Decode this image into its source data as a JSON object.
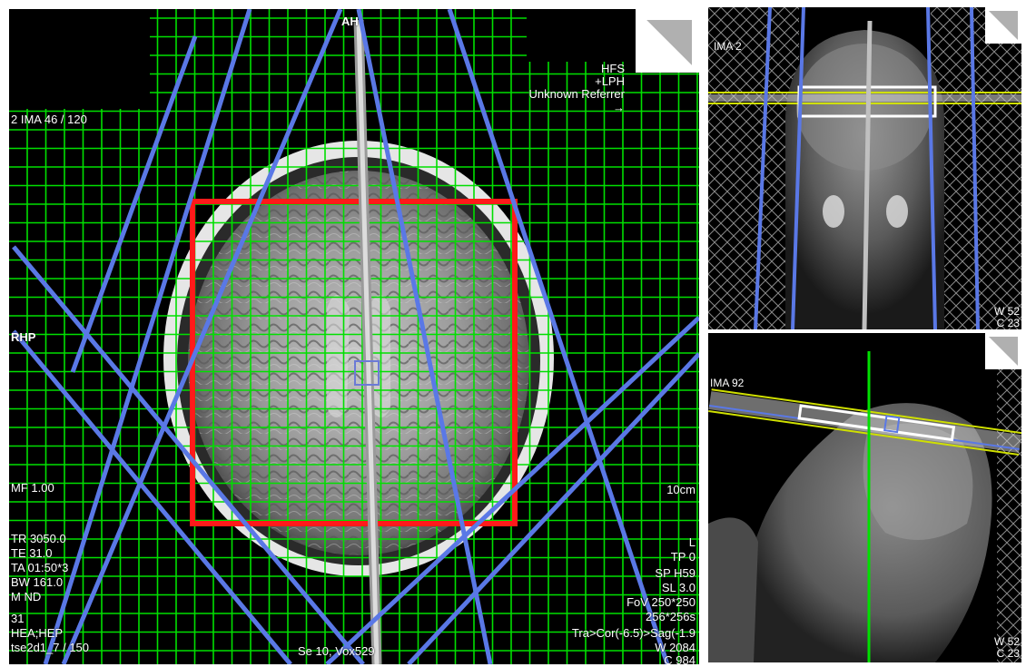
{
  "axial_view": {
    "orientation_top": "AH",
    "orientation_left": "RHP",
    "image_index": "2 IMA 46 / 120",
    "patient_position": "HFS",
    "coordinate_system": "+LPH",
    "referrer": "Unknown Referrer",
    "arrow_glyph": "→",
    "left_params": [
      "MF 1.00",
      "TR 3050.0",
      "TE 31.0",
      "TA 01:50*3",
      "BW 161.0",
      "M ND",
      "31",
      "HEA;HEP",
      "tse2d1_7 / 150"
    ],
    "right_params": [
      "10cm",
      "L",
      "TP 0",
      "SP H59",
      "SL 3.0",
      "FoV 250*250",
      "256*256s",
      "Tra>Cor(-6.5)>Sag(-1.9",
      "W 2084",
      "C 984"
    ],
    "bottom_center": "Se 10, Vox529"
  },
  "coronal_view": {
    "image_index": "IMA 2",
    "window": "W 52",
    "center": "C 23"
  },
  "sagittal_view": {
    "image_index": "IMA 92",
    "window": "W 52",
    "center": "C 23"
  },
  "colors": {
    "grid": "#00e000",
    "slab_lines": "#5a78e6",
    "fov_box": "#ff1a1a",
    "sat_band": "#c8c8c8"
  }
}
